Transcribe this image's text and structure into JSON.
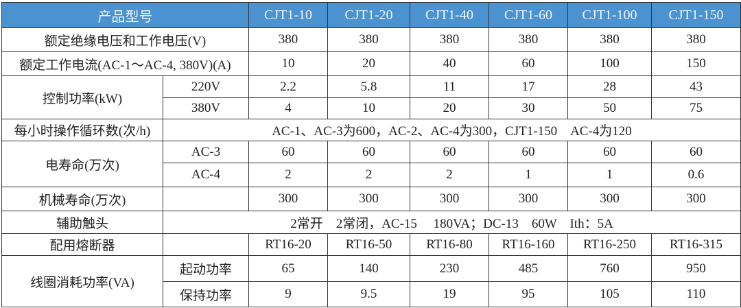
{
  "header": {
    "label": "产品型号",
    "models": [
      "CJT1-10",
      "CJT1-20",
      "CJT1-40",
      "CJT1-60",
      "CJT1-100",
      "CJT1-150"
    ]
  },
  "rows": {
    "insulation_voltage": {
      "label": "额定绝缘电压和工作电压(V)",
      "values": [
        "380",
        "380",
        "380",
        "380",
        "380",
        "380"
      ]
    },
    "rated_current": {
      "label": "额定工作电流(AC-1～AC-4, 380V)(A)",
      "values": [
        "10",
        "20",
        "40",
        "60",
        "100",
        "150"
      ]
    },
    "control_power": {
      "label": "控制功率(kW)",
      "sub": [
        {
          "label": "220V",
          "values": [
            "2.2",
            "5.8",
            "11",
            "17",
            "28",
            "43"
          ]
        },
        {
          "label": "380V",
          "values": [
            "4",
            "10",
            "20",
            "30",
            "50",
            "75"
          ]
        }
      ]
    },
    "operations_per_hour": {
      "label": "每小时操作循环数(次/h)",
      "value": "AC-1、AC-3为600，AC-2、AC-4为300，CJT1-150　AC-4为120"
    },
    "electrical_life": {
      "label": "电寿命(万次)",
      "sub": [
        {
          "label": "AC-3",
          "values": [
            "60",
            "60",
            "60",
            "60",
            "60",
            "60"
          ]
        },
        {
          "label": "AC-4",
          "values": [
            "2",
            "2",
            "2",
            "1",
            "1",
            "0.6"
          ]
        }
      ]
    },
    "mechanical_life": {
      "label": "机械寿命(万次)",
      "values": [
        "300",
        "300",
        "300",
        "300",
        "300",
        "300"
      ]
    },
    "auxiliary_contacts": {
      "label": "辅助触头",
      "value": "2常开　2常闭，AC-15　 180VA；DC-13　60W　Ith：5A"
    },
    "fuse": {
      "label": "配用熔断器",
      "values": [
        "RT16-20",
        "RT16-50",
        "RT16-80",
        "RT16-160",
        "RT16-250",
        "RT16-315"
      ]
    },
    "coil_power": {
      "label": "线圈消耗功率(VA)",
      "sub": [
        {
          "label": "起动功率",
          "values": [
            "65",
            "140",
            "230",
            "485",
            "760",
            "950"
          ]
        },
        {
          "label": "保持功率",
          "values": [
            "9",
            "9.5",
            "19",
            "95",
            "105",
            "110"
          ]
        }
      ]
    }
  },
  "colors": {
    "header_bg": "#4a92d0",
    "header_text": "#f2f6fb",
    "border": "#333333"
  }
}
